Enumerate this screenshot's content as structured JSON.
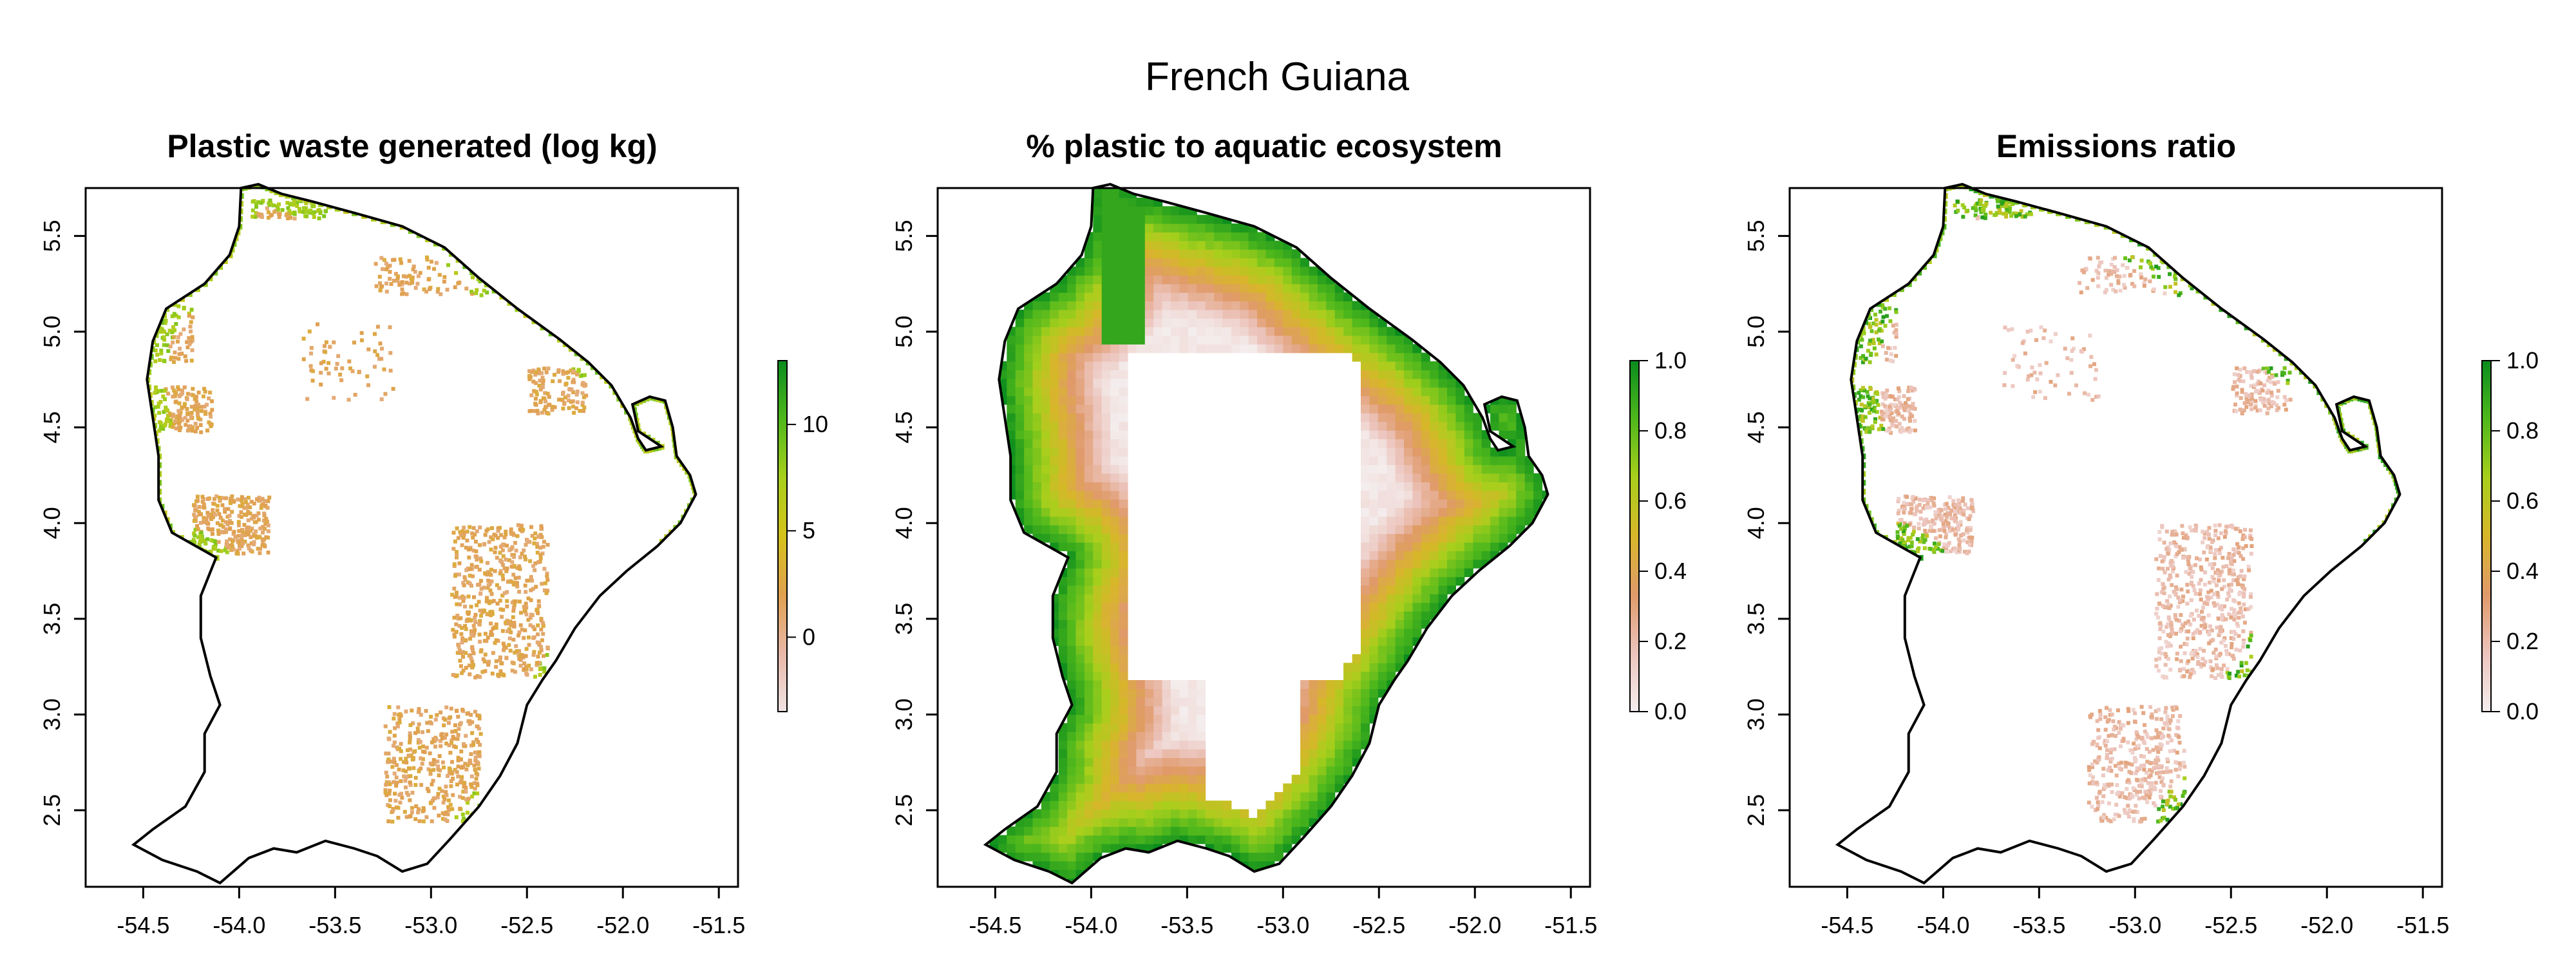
{
  "figure": {
    "title": "French Guiana"
  },
  "chart_data": [
    {
      "type": "heatmap",
      "title": "Plastic waste generated (log kg)",
      "xlim": [
        -54.8,
        -51.4
      ],
      "ylim": [
        2.1,
        5.75
      ],
      "x_ticks": [
        -54.5,
        -54.0,
        -53.5,
        -53.0,
        -52.5,
        -52.0,
        -51.5
      ],
      "x_tick_labels": [
        "-54.5",
        "-54.0",
        "-53.5",
        "-53.0",
        "-52.5",
        "-52.0",
        "-51.5"
      ],
      "y_ticks": [
        2.5,
        3.0,
        3.5,
        4.0,
        4.5,
        5.0,
        5.5
      ],
      "y_tick_labels": [
        "2.5",
        "3.0",
        "3.5",
        "4.0",
        "4.5",
        "5.0",
        "5.5"
      ],
      "legend": {
        "range": [
          -3.5,
          13
        ],
        "ticks": [
          0,
          5,
          10
        ],
        "tick_labels": [
          "0",
          "5",
          "10"
        ],
        "colors": [
          "#f0e4e4",
          "#e8b8a8",
          "#e0a050",
          "#d4c21c",
          "#a8cf1c",
          "#4fb81c",
          "#0a8c1e"
        ],
        "placement": "right"
      },
      "pattern": "scattered-settlements"
    },
    {
      "type": "heatmap",
      "title": "% plastic to aquatic ecosystem",
      "xlim": [
        -54.8,
        -51.4
      ],
      "ylim": [
        2.1,
        5.75
      ],
      "x_ticks": [
        -54.5,
        -54.0,
        -53.5,
        -53.0,
        -52.5,
        -52.0,
        -51.5
      ],
      "x_tick_labels": [
        "-54.5",
        "-54.0",
        "-53.5",
        "-53.0",
        "-52.5",
        "-52.0",
        "-51.5"
      ],
      "y_ticks": [
        2.5,
        3.0,
        3.5,
        4.0,
        4.5,
        5.0,
        5.5
      ],
      "y_tick_labels": [
        "2.5",
        "3.0",
        "3.5",
        "4.0",
        "4.5",
        "5.0",
        "5.5"
      ],
      "legend": {
        "range": [
          0,
          1
        ],
        "ticks": [
          0,
          0.2,
          0.4,
          0.6,
          0.8,
          1.0
        ],
        "tick_labels": [
          "0.0",
          "0.2",
          "0.4",
          "0.6",
          "0.8",
          "1.0"
        ],
        "colors": [
          "#f4eeee",
          "#ecc4bc",
          "#e09a6a",
          "#d8b62a",
          "#a8cf1c",
          "#4fb81c",
          "#0a8c1e"
        ],
        "placement": "right"
      },
      "pattern": "distance-to-water-gradient"
    },
    {
      "type": "heatmap",
      "title": "Emissions ratio",
      "xlim": [
        -54.8,
        -51.4
      ],
      "ylim": [
        2.1,
        5.75
      ],
      "x_ticks": [
        -54.5,
        -54.0,
        -53.5,
        -53.0,
        -52.5,
        -52.0,
        -51.5
      ],
      "x_tick_labels": [
        "-54.5",
        "-54.0",
        "-53.5",
        "-53.0",
        "-52.5",
        "-52.0",
        "-51.5"
      ],
      "y_ticks": [
        2.5,
        3.0,
        3.5,
        4.0,
        4.5,
        5.0,
        5.5
      ],
      "y_tick_labels": [
        "2.5",
        "3.0",
        "3.5",
        "4.0",
        "4.5",
        "5.0",
        "5.5"
      ],
      "legend": {
        "range": [
          0,
          1
        ],
        "ticks": [
          0,
          0.2,
          0.4,
          0.6,
          0.8,
          1.0
        ],
        "tick_labels": [
          "0.0",
          "0.2",
          "0.4",
          "0.6",
          "0.8",
          "1.0"
        ],
        "colors": [
          "#f4eeee",
          "#ecc4bc",
          "#e09a6a",
          "#d8b62a",
          "#a8cf1c",
          "#4fb81c",
          "#0a8c1e"
        ],
        "placement": "right"
      },
      "pattern": "coastal-emissions"
    }
  ]
}
